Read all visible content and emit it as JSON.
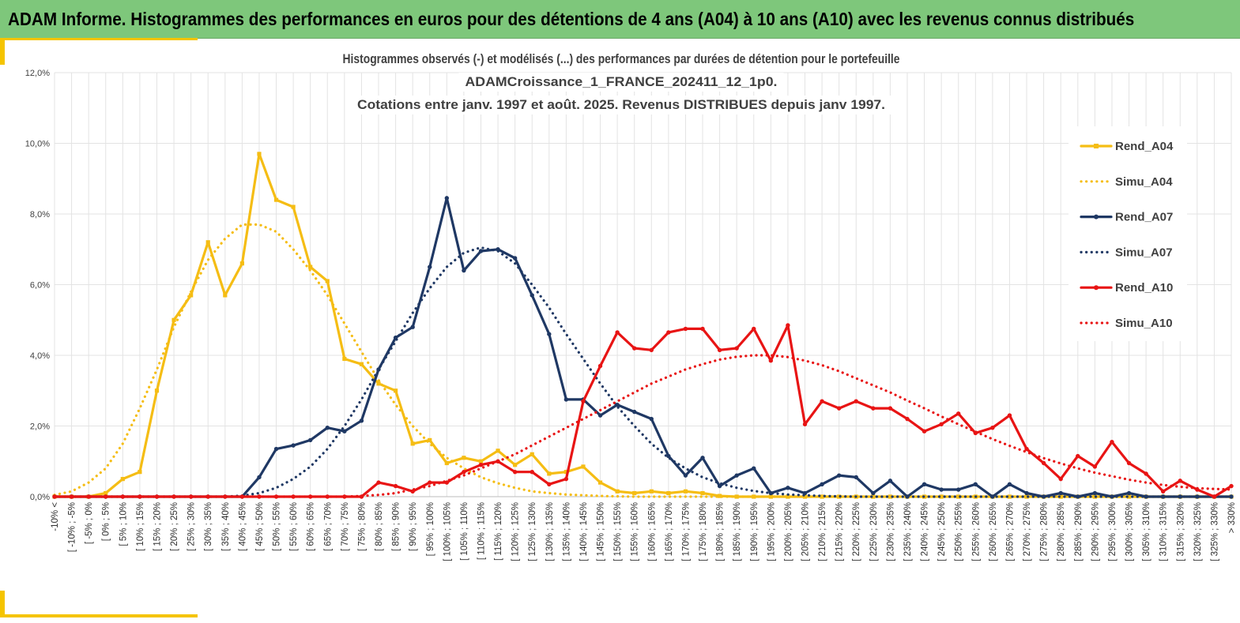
{
  "header": {
    "title": "ADAM Informe. Histogrammes des performances en euros pour des détentions de 4 ans (A04) à 10 ans (A10) avec les revenus connus distribués"
  },
  "colors": {
    "banner": "#7ec77b",
    "accent": "#f5c400",
    "A04": "#f5bd14",
    "A07": "#1f3864",
    "A10": "#e81414"
  },
  "chart_data": {
    "type": "line",
    "title_lines": [
      "Histogrammes observés (-) et modélisés (...) des performances  par durées de détention pour le portefeuille",
      "ADAMCroissance_1_FRANCE_202411_12_1p0.",
      "Cotations  entre janv. 1997 et août. 2025. Revenus DISTRIBUES depuis janv 1997."
    ],
    "ylim": [
      0,
      12
    ],
    "y_unit": "%",
    "y_ticks": [
      "0,0%",
      "2,0%",
      "4,0%",
      "6,0%",
      "8,0%",
      "10,0%",
      "12,0%"
    ],
    "grid": true,
    "legend_position": "right",
    "categories": [
      "-10% <",
      "[ -10% ; -5%",
      "[ -5% ; 0%",
      "[ 0% ; 5%",
      "[ 5% ; 10%",
      "[ 10% ; 15%",
      "[ 15% ; 20%",
      "[ 20% ; 25%",
      "[ 25% ; 30%",
      "[ 30% ; 35%",
      "[ 35% ; 40%",
      "[ 40% ; 45%",
      "[ 45% ; 50%",
      "[ 50% ; 55%",
      "[ 55% ; 60%",
      "[ 60% ; 65%",
      "[ 65% ; 70%",
      "[ 70% ; 75%",
      "[ 75% ; 80%",
      "[ 80% ; 85%",
      "[ 85% ; 90%",
      "[ 90% ; 95%",
      "[ 95% ; 100%",
      "[ 100% ; 105%",
      "[ 105% ; 110%",
      "[ 110% ; 115%",
      "[ 115% ; 120%",
      "[ 120% ; 125%",
      "[ 125% ; 130%",
      "[ 130% ; 135%",
      "[ 135% ; 140%",
      "[ 140% ; 145%",
      "[ 145% ; 150%",
      "[ 150% ; 155%",
      "[ 155% ; 160%",
      "[ 160% ; 165%",
      "[ 165% ; 170%",
      "[ 170% ; 175%",
      "[ 175% ; 180%",
      "[ 180% ; 185%",
      "[ 185% ; 190%",
      "[ 190% ; 195%",
      "[ 195% ; 200%",
      "[ 200% ; 205%",
      "[ 205% ; 210%",
      "[ 210% ; 215%",
      "[ 215% ; 220%",
      "[ 220% ; 225%",
      "[ 225% ; 230%",
      "[ 230% ; 235%",
      "[ 235% ; 240%",
      "[ 240% ; 245%",
      "[ 245% ; 250%",
      "[ 250% ; 255%",
      "[ 255% ; 260%",
      "[ 260% ; 265%",
      "[ 265% ; 270%",
      "[ 270% ; 275%",
      "[ 275% ; 280%",
      "[ 280% ; 285%",
      "[ 285% ; 290%",
      "[ 290% ; 295%",
      "[ 295% ; 300%",
      "[ 300% ; 305%",
      "[ 305% ; 310%",
      "[ 310% ; 315%",
      "[ 315% ; 320%",
      "[ 320% ; 325%",
      "[ 325% ; 330%",
      "> 330%"
    ],
    "series": [
      {
        "name": "Rend_A04",
        "style": "solid",
        "marker": "square",
        "color": "#f5bd14",
        "values": [
          0,
          0,
          0,
          0.1,
          0.5,
          0.7,
          3.0,
          5.0,
          5.7,
          7.2,
          5.7,
          6.6,
          9.7,
          8.4,
          8.2,
          6.5,
          6.1,
          3.9,
          3.75,
          3.2,
          3.0,
          1.5,
          1.6,
          0.95,
          1.1,
          1.0,
          1.3,
          0.9,
          1.2,
          0.65,
          0.7,
          0.85,
          0.4,
          0.15,
          0.1,
          0.15,
          0.1,
          0.15,
          0.1,
          0.02,
          0,
          0,
          0,
          0,
          0,
          0,
          0,
          0,
          0,
          0,
          0,
          0,
          0,
          0,
          0,
          0,
          0,
          0,
          0,
          0,
          0,
          0,
          0,
          0,
          0,
          0,
          0,
          0,
          0,
          0
        ]
      },
      {
        "name": "Simu_A04",
        "style": "dotted",
        "color": "#f5bd14",
        "values": [
          0.05,
          0.15,
          0.4,
          0.8,
          1.5,
          2.5,
          3.6,
          4.8,
          5.8,
          6.7,
          7.3,
          7.7,
          7.7,
          7.5,
          7.0,
          6.4,
          5.7,
          4.9,
          4.1,
          3.3,
          2.6,
          2.0,
          1.5,
          1.1,
          0.8,
          0.55,
          0.38,
          0.25,
          0.15,
          0.1,
          0.06,
          0.04,
          0.02,
          0.01,
          0,
          0,
          0,
          0,
          0,
          0,
          0,
          0,
          0,
          0,
          0,
          0,
          0,
          0,
          0,
          0,
          0,
          0,
          0,
          0,
          0,
          0,
          0,
          0,
          0,
          0,
          0,
          0,
          0,
          0,
          0,
          0,
          0,
          0,
          0,
          0
        ]
      },
      {
        "name": "Rend_A07",
        "style": "solid",
        "marker": "circle",
        "color": "#1f3864",
        "values": [
          0,
          0,
          0,
          0,
          0,
          0,
          0,
          0,
          0,
          0,
          0,
          0,
          0.55,
          1.35,
          1.45,
          1.6,
          1.95,
          1.85,
          2.15,
          3.6,
          4.5,
          4.8,
          6.5,
          8.45,
          6.4,
          6.95,
          7.0,
          6.75,
          5.7,
          4.6,
          2.75,
          2.75,
          2.3,
          2.6,
          2.4,
          2.2,
          1.15,
          0.6,
          1.1,
          0.3,
          0.6,
          0.8,
          0.1,
          0.25,
          0.1,
          0.35,
          0.6,
          0.55,
          0.1,
          0.45,
          0,
          0.35,
          0.2,
          0.2,
          0.35,
          0,
          0.35,
          0.1,
          0,
          0.1,
          0,
          0.1,
          0,
          0.1,
          0,
          0,
          0,
          0,
          0,
          0
        ]
      },
      {
        "name": "Simu_A07",
        "style": "dotted",
        "color": "#1f3864",
        "values": [
          0,
          0,
          0,
          0,
          0,
          0,
          0,
          0,
          0,
          0,
          0,
          0.03,
          0.1,
          0.25,
          0.5,
          0.85,
          1.35,
          2.0,
          2.75,
          3.6,
          4.4,
          5.2,
          5.9,
          6.5,
          6.9,
          7.05,
          6.95,
          6.6,
          6.0,
          5.35,
          4.6,
          3.9,
          3.2,
          2.55,
          2.0,
          1.5,
          1.1,
          0.8,
          0.55,
          0.38,
          0.25,
          0.16,
          0.1,
          0.06,
          0.04,
          0.02,
          0.01,
          0,
          0,
          0,
          0,
          0,
          0,
          0,
          0,
          0,
          0,
          0,
          0,
          0,
          0,
          0,
          0,
          0,
          0,
          0,
          0,
          0,
          0,
          0
        ]
      },
      {
        "name": "Rend_A10",
        "style": "solid",
        "marker": "circle",
        "color": "#e81414",
        "values": [
          0,
          0,
          0,
          0,
          0,
          0,
          0,
          0,
          0,
          0,
          0,
          0,
          0,
          0,
          0,
          0,
          0,
          0,
          0,
          0.4,
          0.3,
          0.15,
          0.4,
          0.4,
          0.7,
          0.9,
          1.0,
          0.7,
          0.7,
          0.35,
          0.5,
          2.7,
          3.7,
          4.65,
          4.2,
          4.15,
          4.65,
          4.75,
          4.75,
          4.15,
          4.2,
          4.75,
          3.85,
          4.85,
          2.05,
          2.7,
          2.5,
          2.7,
          2.5,
          2.5,
          2.2,
          1.85,
          2.05,
          2.35,
          1.8,
          1.95,
          2.3,
          1.35,
          0.95,
          0.5,
          1.15,
          0.85,
          1.55,
          0.95,
          0.65,
          0.15,
          0.45,
          0.2,
          0,
          0.3
        ]
      },
      {
        "name": "Simu_A10",
        "style": "dotted",
        "color": "#e81414",
        "values": [
          0,
          0,
          0,
          0,
          0,
          0,
          0,
          0,
          0,
          0,
          0,
          0,
          0,
          0,
          0,
          0,
          0,
          0,
          0.02,
          0.05,
          0.1,
          0.2,
          0.3,
          0.45,
          0.6,
          0.8,
          1.0,
          1.2,
          1.45,
          1.7,
          1.95,
          2.2,
          2.45,
          2.7,
          2.95,
          3.2,
          3.4,
          3.6,
          3.75,
          3.88,
          3.96,
          4.0,
          4.0,
          3.95,
          3.85,
          3.72,
          3.55,
          3.35,
          3.15,
          2.95,
          2.72,
          2.5,
          2.27,
          2.05,
          1.84,
          1.63,
          1.44,
          1.26,
          1.09,
          0.94,
          0.8,
          0.68,
          0.58,
          0.48,
          0.4,
          0.33,
          0.28,
          0.24,
          0.22,
          0.2
        ]
      }
    ]
  }
}
